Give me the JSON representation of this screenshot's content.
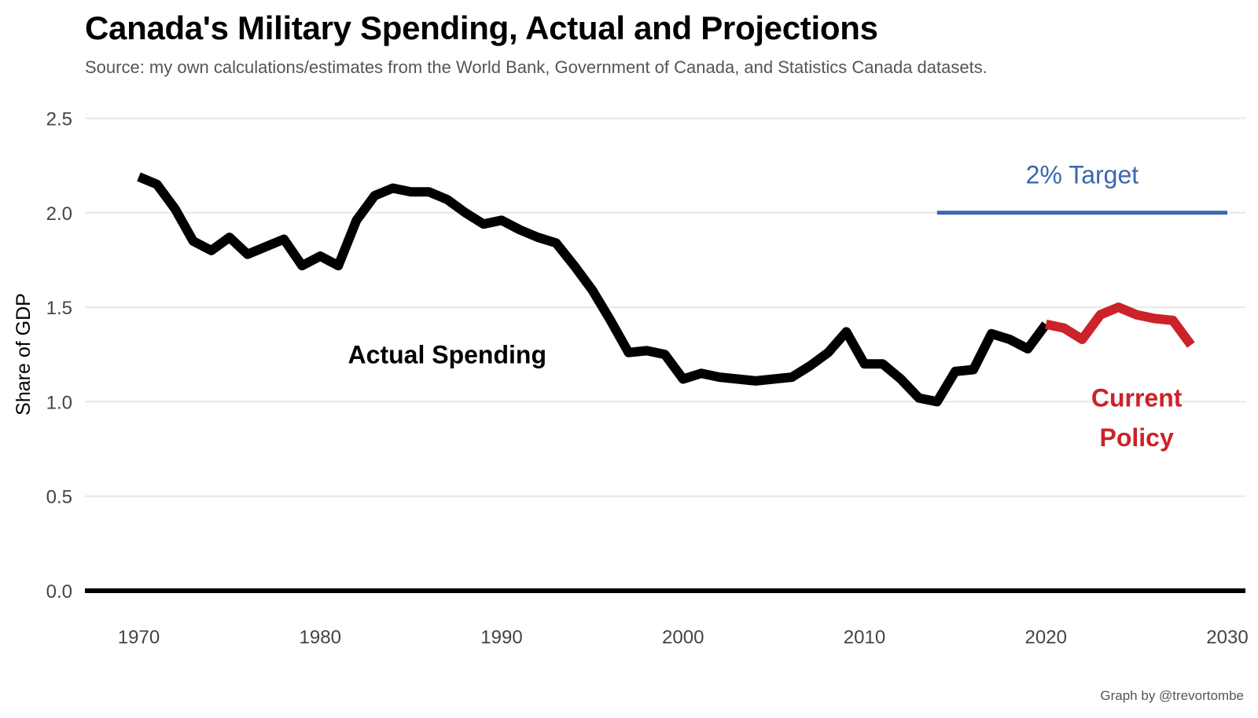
{
  "chart_data": {
    "type": "line",
    "title": "Canada's Military Spending, Actual and Projections",
    "subtitle": "Source: my own calculations/estimates from the World Bank, Government of Canada, and Statistics Canada datasets.",
    "caption": "Graph by @trevortombe",
    "xlabel": "",
    "ylabel": "Share of GDP",
    "xlim": [
      1970,
      2030
    ],
    "ylim": [
      0,
      2.5
    ],
    "x_ticks": [
      "1970",
      "1980",
      "1990",
      "2000",
      "2010",
      "2020",
      "2030"
    ],
    "y_ticks": [
      "0.0",
      "0.5",
      "1.0",
      "1.5",
      "2.0",
      "2.5"
    ],
    "grid": true,
    "legend": "none",
    "series": [
      {
        "name": "Actual Spending",
        "color": "#000000",
        "x": [
          1970,
          1971,
          1972,
          1973,
          1974,
          1975,
          1976,
          1977,
          1978,
          1979,
          1980,
          1981,
          1982,
          1983,
          1984,
          1985,
          1986,
          1987,
          1988,
          1989,
          1990,
          1991,
          1992,
          1993,
          1994,
          1995,
          1996,
          1997,
          1998,
          1999,
          2000,
          2001,
          2002,
          2003,
          2004,
          2005,
          2006,
          2007,
          2008,
          2009,
          2010,
          2011,
          2012,
          2013,
          2014,
          2015,
          2016,
          2017,
          2018,
          2019,
          2020
        ],
        "values": [
          2.19,
          2.15,
          2.02,
          1.85,
          1.8,
          1.87,
          1.78,
          1.82,
          1.86,
          1.72,
          1.77,
          1.72,
          1.96,
          2.09,
          2.13,
          2.11,
          2.11,
          2.07,
          2.0,
          1.94,
          1.96,
          1.91,
          1.87,
          1.84,
          1.72,
          1.59,
          1.43,
          1.26,
          1.27,
          1.25,
          1.12,
          1.15,
          1.13,
          1.12,
          1.11,
          1.12,
          1.13,
          1.19,
          1.26,
          1.37,
          1.2,
          1.2,
          1.12,
          1.02,
          1.0,
          1.16,
          1.17,
          1.36,
          1.33,
          1.28,
          1.41
        ]
      },
      {
        "name": "Current Policy",
        "color": "#cc2229",
        "x": [
          2020,
          2021,
          2022,
          2023,
          2024,
          2025,
          2026,
          2027,
          2028
        ],
        "values": [
          1.41,
          1.39,
          1.33,
          1.46,
          1.5,
          1.46,
          1.44,
          1.43,
          1.3
        ]
      },
      {
        "name": "2% Target",
        "color": "#3a66b0",
        "x": [
          2014,
          2030
        ],
        "values": [
          2.0,
          2.0
        ]
      }
    ],
    "annotations": [
      {
        "text": "Actual Spending",
        "x": 1987,
        "y": 1.25,
        "color": "#000000"
      },
      {
        "text": "2% Target",
        "x": 2022,
        "y": 2.2,
        "color": "#3a66b0"
      },
      {
        "text": "Current",
        "x": 2025,
        "y": 1.02,
        "color": "#cc2229"
      },
      {
        "text": "Policy",
        "x": 2025,
        "y": 0.81,
        "color": "#cc2229"
      }
    ]
  }
}
